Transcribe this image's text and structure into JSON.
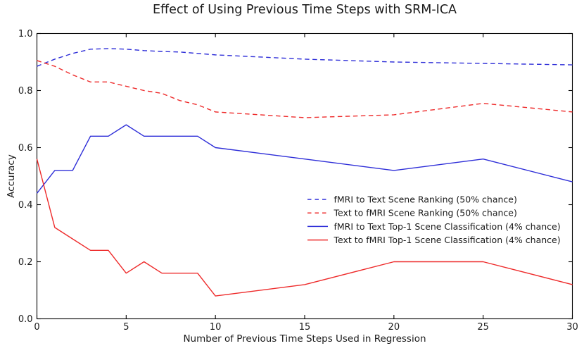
{
  "chart_data": {
    "type": "line",
    "title": "Effect of Using Previous Time Steps with SRM-ICA",
    "xlabel": "Number of Previous Time Steps Used in Regression",
    "ylabel": "Accuracy",
    "xlim": [
      0,
      30
    ],
    "ylim": [
      0.0,
      1.0
    ],
    "x_ticks": [
      0,
      5,
      10,
      15,
      20,
      25,
      30
    ],
    "x_tick_labels": [
      "0",
      "5",
      "10",
      "15",
      "20",
      "25",
      "30"
    ],
    "y_ticks": [
      0.0,
      0.2,
      0.4,
      0.6,
      0.8,
      1.0
    ],
    "y_tick_labels": [
      "0.0",
      "0.2",
      "0.4",
      "0.6",
      "0.8",
      "1.0"
    ],
    "grid": false,
    "legend_position": "center right",
    "legend_frame": false,
    "x": [
      0,
      1,
      2,
      3,
      4,
      5,
      6,
      7,
      8,
      9,
      10,
      15,
      20,
      25,
      30
    ],
    "series": [
      {
        "name": "fMRI to Text Scene Ranking (50% chance)",
        "color": "#2e2ed8",
        "style": "dashed",
        "values": [
          0.885,
          0.91,
          0.93,
          0.945,
          0.947,
          0.945,
          0.94,
          0.937,
          0.935,
          0.93,
          0.925,
          0.91,
          0.9,
          0.895,
          0.89
        ]
      },
      {
        "name": "Text to fMRI Scene Ranking (50% chance)",
        "color": "#ee2b2b",
        "style": "dashed",
        "values": [
          0.905,
          0.885,
          0.855,
          0.83,
          0.83,
          0.815,
          0.8,
          0.79,
          0.765,
          0.75,
          0.725,
          0.705,
          0.715,
          0.755,
          0.725
        ]
      },
      {
        "name": "fMRI to Text Top-1 Scene Classification (4% chance)",
        "color": "#2e2ed8",
        "style": "solid",
        "values": [
          0.44,
          0.52,
          0.52,
          0.64,
          0.64,
          0.68,
          0.64,
          0.64,
          0.64,
          0.64,
          0.6,
          0.56,
          0.52,
          0.56,
          0.48
        ]
      },
      {
        "name": "Text to fMRI Top-1 Scene Classification (4% chance)",
        "color": "#ee2b2b",
        "style": "solid",
        "values": [
          0.56,
          0.32,
          0.28,
          0.24,
          0.24,
          0.16,
          0.2,
          0.16,
          0.16,
          0.16,
          0.08,
          0.12,
          0.2,
          0.2,
          0.12
        ]
      }
    ]
  }
}
